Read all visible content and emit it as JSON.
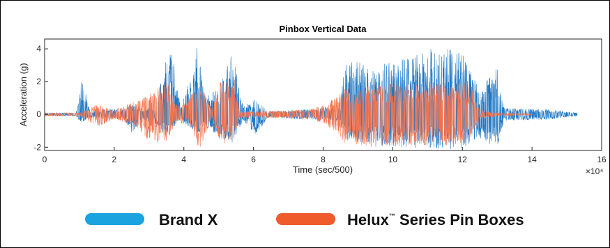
{
  "chart_data": {
    "type": "line",
    "title": "Pinbox Vertical Data",
    "xlabel": "Time (sec/500)",
    "ylabel": "Acceleration (g)",
    "x_exponent_label": "×10⁴",
    "xlim": [
      0,
      16
    ],
    "ylim": [
      -2.2,
      4.6
    ],
    "x_ticks": [
      0,
      2,
      4,
      6,
      8,
      10,
      12,
      14,
      16
    ],
    "y_ticks": [
      -2,
      0,
      2,
      4
    ],
    "grid": false,
    "legend_position": "bottom",
    "series": [
      {
        "name": "Brand X",
        "color": "#1f77c4",
        "legend_color": "#1aa3df",
        "envelope": [
          {
            "x": 0.0,
            "upper": 0.1,
            "lower": -0.1
          },
          {
            "x": 0.9,
            "upper": 0.1,
            "lower": -0.1
          },
          {
            "x": 1.05,
            "upper": 2.5,
            "lower": -0.5
          },
          {
            "x": 1.3,
            "upper": 0.2,
            "lower": -0.2
          },
          {
            "x": 2.3,
            "upper": 0.4,
            "lower": -0.3
          },
          {
            "x": 2.5,
            "upper": 0.6,
            "lower": -1.2
          },
          {
            "x": 2.8,
            "upper": 0.3,
            "lower": -0.3
          },
          {
            "x": 3.2,
            "upper": 0.5,
            "lower": -0.6
          },
          {
            "x": 3.5,
            "upper": 3.5,
            "lower": -1.4
          },
          {
            "x": 3.65,
            "upper": 4.2,
            "lower": -1.0
          },
          {
            "x": 3.9,
            "upper": 0.4,
            "lower": -0.3
          },
          {
            "x": 4.3,
            "upper": 3.0,
            "lower": -1.0
          },
          {
            "x": 4.4,
            "upper": 4.5,
            "lower": -1.3
          },
          {
            "x": 4.6,
            "upper": 1.0,
            "lower": -0.6
          },
          {
            "x": 5.0,
            "upper": 1.6,
            "lower": -1.4
          },
          {
            "x": 5.4,
            "upper": 4.0,
            "lower": -1.8
          },
          {
            "x": 5.7,
            "upper": 0.5,
            "lower": -0.4
          },
          {
            "x": 6.1,
            "upper": 1.0,
            "lower": -1.3
          },
          {
            "x": 6.4,
            "upper": 0.2,
            "lower": -0.2
          },
          {
            "x": 8.5,
            "upper": 0.4,
            "lower": -0.4
          },
          {
            "x": 8.6,
            "upper": 3.3,
            "lower": -1.5
          },
          {
            "x": 9.5,
            "upper": 3.0,
            "lower": -2.0
          },
          {
            "x": 10.5,
            "upper": 3.5,
            "lower": -2.0
          },
          {
            "x": 11.3,
            "upper": 4.2,
            "lower": -2.1
          },
          {
            "x": 12.0,
            "upper": 3.8,
            "lower": -2.1
          },
          {
            "x": 12.5,
            "upper": 1.5,
            "lower": -1.5
          },
          {
            "x": 13.0,
            "upper": 3.0,
            "lower": -2.0
          },
          {
            "x": 13.2,
            "upper": 0.4,
            "lower": -0.4
          },
          {
            "x": 14.5,
            "upper": 0.3,
            "lower": -0.3
          },
          {
            "x": 15.3,
            "upper": 0.1,
            "lower": -0.1
          }
        ]
      },
      {
        "name": "Helux™ Series Pin Boxes",
        "color": "#f2734f",
        "legend_color": "#ef5b2b",
        "envelope": [
          {
            "x": 0.0,
            "upper": 0.1,
            "lower": -0.1
          },
          {
            "x": 1.0,
            "upper": 0.1,
            "lower": -0.1
          },
          {
            "x": 1.2,
            "upper": 0.3,
            "lower": -0.3
          },
          {
            "x": 1.5,
            "upper": 0.6,
            "lower": -0.8
          },
          {
            "x": 2.0,
            "upper": 0.3,
            "lower": -0.3
          },
          {
            "x": 2.6,
            "upper": 0.8,
            "lower": -0.7
          },
          {
            "x": 3.0,
            "upper": 1.2,
            "lower": -1.8
          },
          {
            "x": 3.5,
            "upper": 2.1,
            "lower": -1.6
          },
          {
            "x": 3.8,
            "upper": 0.6,
            "lower": -0.5
          },
          {
            "x": 4.2,
            "upper": 1.1,
            "lower": -0.8
          },
          {
            "x": 4.45,
            "upper": 2.2,
            "lower": -2.2
          },
          {
            "x": 4.8,
            "upper": 0.3,
            "lower": -0.3
          },
          {
            "x": 5.05,
            "upper": 2.0,
            "lower": -1.8
          },
          {
            "x": 5.45,
            "upper": 2.1,
            "lower": -1.6
          },
          {
            "x": 5.6,
            "upper": 0.2,
            "lower": -0.2
          },
          {
            "x": 6.5,
            "upper": 0.2,
            "lower": -0.2
          },
          {
            "x": 7.6,
            "upper": 0.3,
            "lower": -0.3
          },
          {
            "x": 8.1,
            "upper": 0.6,
            "lower": -0.6
          },
          {
            "x": 8.6,
            "upper": 1.6,
            "lower": -1.8
          },
          {
            "x": 9.5,
            "upper": 1.8,
            "lower": -2.0
          },
          {
            "x": 10.5,
            "upper": 1.9,
            "lower": -1.9
          },
          {
            "x": 11.5,
            "upper": 2.0,
            "lower": -1.9
          },
          {
            "x": 12.2,
            "upper": 1.9,
            "lower": -1.8
          },
          {
            "x": 12.5,
            "upper": 0.3,
            "lower": -0.3
          },
          {
            "x": 13.0,
            "upper": 0.1,
            "lower": -0.1
          },
          {
            "x": 14.0,
            "upper": 0.05,
            "lower": -0.05
          }
        ]
      }
    ]
  },
  "legend": {
    "items": [
      {
        "label": "Brand X",
        "color": "#1aa3df"
      },
      {
        "label": "Helux",
        "trademark": "™",
        "label_suffix": " Series Pin Boxes",
        "color": "#ef5b2b"
      }
    ]
  }
}
